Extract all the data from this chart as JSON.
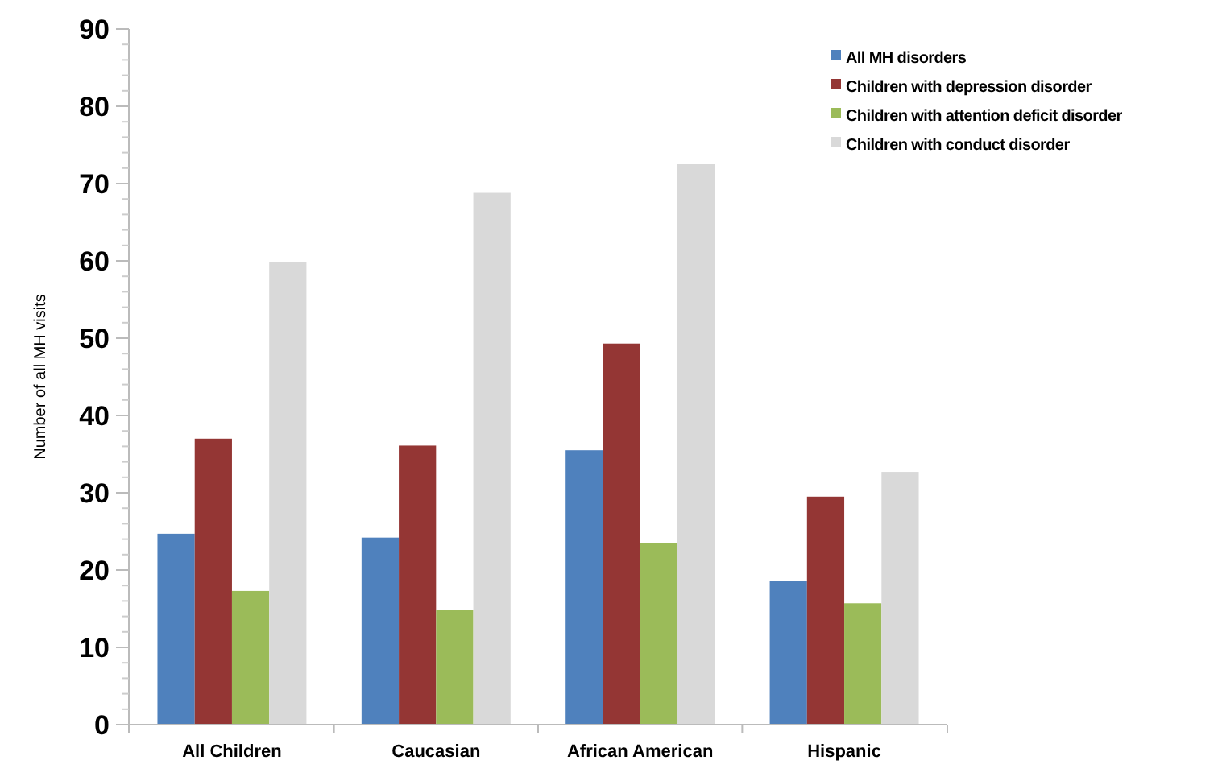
{
  "chart_data": {
    "type": "bar",
    "ylabel": "Number of all MH visits",
    "categories": [
      "All Children",
      "Caucasian",
      "African American",
      "Hispanic"
    ],
    "series": [
      {
        "name": "All MH disorders",
        "color": "#4f81bd",
        "values": [
          24.7,
          24.2,
          35.5,
          18.6
        ]
      },
      {
        "name": "Children with depression disorder",
        "color": "#943634",
        "values": [
          37,
          36.1,
          49.3,
          29.5
        ]
      },
      {
        "name": "Children with attention deficit disorder",
        "color": "#9bbb59",
        "values": [
          17.3,
          14.8,
          23.5,
          15.7
        ]
      },
      {
        "name": "Children with conduct disorder",
        "color": "#d9d9d9",
        "values": [
          59.8,
          68.8,
          72.5,
          32.7
        ]
      }
    ],
    "ylim": [
      0,
      90
    ],
    "yticks": [
      0,
      10,
      20,
      30,
      40,
      50,
      60,
      70,
      80,
      90
    ],
    "grid": false,
    "legend": "top right"
  }
}
